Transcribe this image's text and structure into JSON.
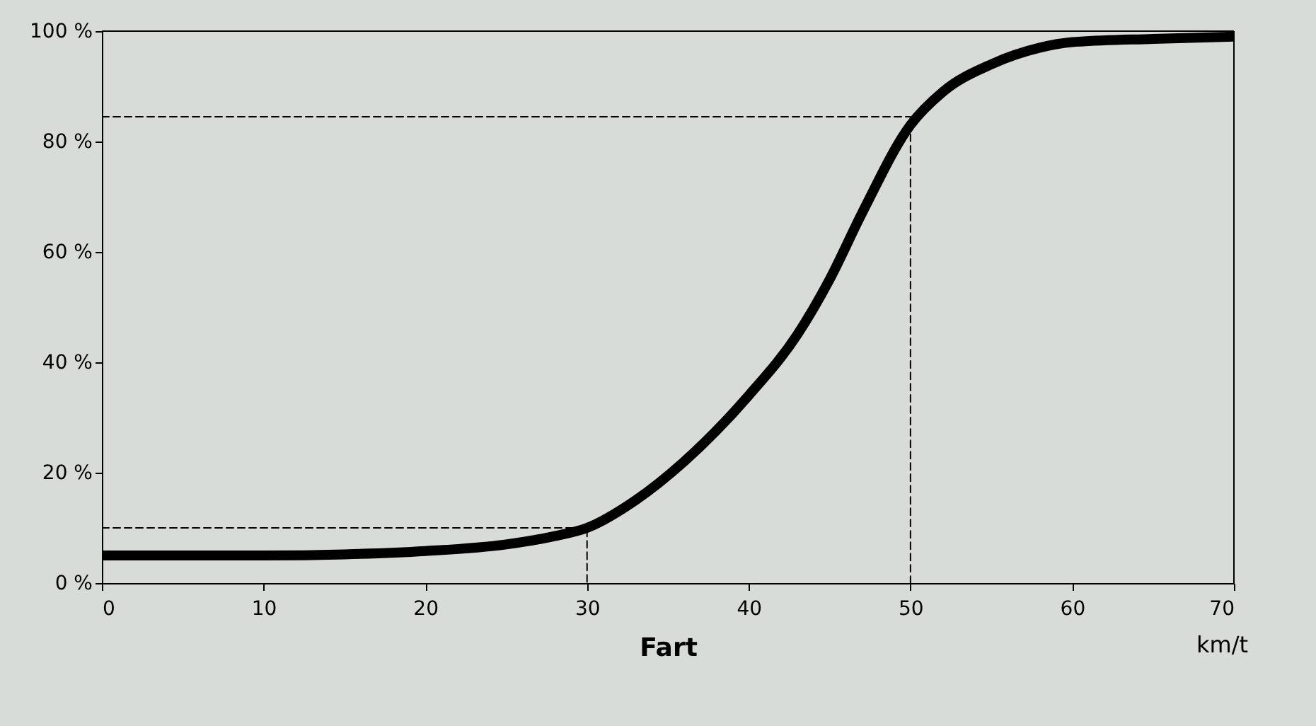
{
  "chart_data": {
    "type": "line",
    "xlabel": "Fart",
    "annotations": [
      "km/t"
    ],
    "x": [
      0,
      5,
      10,
      15,
      20,
      25,
      28,
      30,
      33,
      36,
      40,
      43,
      45,
      47,
      50,
      52,
      55,
      58,
      60,
      65,
      70
    ],
    "series": [
      {
        "color": "#000000",
        "values": [
          5,
          5,
          5,
          5.2,
          5.8,
          7,
          8.5,
          10,
          15,
          22,
          34,
          45,
          55,
          67,
          83,
          89,
          94,
          97,
          98,
          98.6,
          99
        ],
        "line_style": "solid"
      },
      {
        "color": "#000000",
        "x": [
          0,
          30,
          30
        ],
        "values": [
          10,
          10,
          0
        ],
        "line_style": "dashed"
      },
      {
        "color": "#000000",
        "x": [
          0,
          50,
          50
        ],
        "values": [
          84.5,
          84.5,
          0
        ],
        "line_style": "dashed"
      }
    ],
    "ref_lines": [
      {
        "axis": "y",
        "value": 100,
        "color": "#000000",
        "line_style": "solid"
      },
      {
        "axis": "x",
        "value": 70,
        "color": "#000000",
        "line_style": "solid"
      }
    ],
    "xlim": [
      0,
      70
    ],
    "xticks": [
      0,
      10,
      20,
      30,
      40,
      50,
      60,
      70
    ],
    "ylim": [
      0,
      100
    ],
    "yticks": [
      {
        "value": 0,
        "label": "0 %"
      },
      {
        "value": 20,
        "label": "20 %"
      },
      {
        "value": 40,
        "label": "40 %"
      },
      {
        "value": 60,
        "label": "60 %"
      },
      {
        "value": 80,
        "label": "80 %"
      },
      {
        "value": 100,
        "label": "100 %"
      }
    ],
    "marker": "none"
  }
}
